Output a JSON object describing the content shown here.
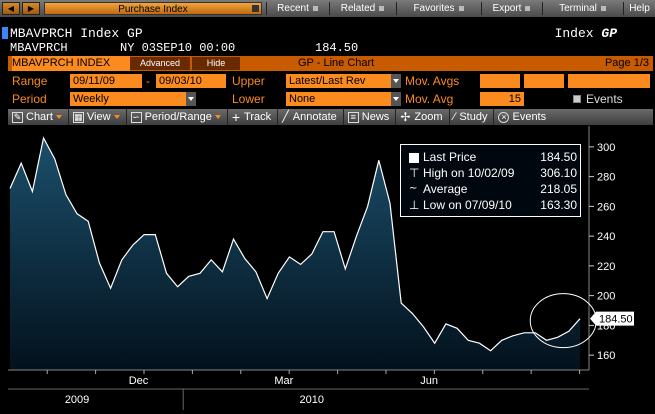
{
  "menubar": {
    "back_icon": "back-arrow-icon",
    "forward_icon": "forward-arrow-icon",
    "title": "Purchase Index",
    "items": [
      "Recent",
      "Related",
      "Favorites",
      "Export",
      "Terminal",
      "Help"
    ]
  },
  "header": {
    "ticker": "MBAVPRCH Index GP",
    "index_label": "Index",
    "index_fn": "GP",
    "code": "MBAVPRCH",
    "datetime": "NY 03SEP10 00:00",
    "price": "184.50"
  },
  "titlebar": {
    "ticker": "MBAVPRCH INDEX",
    "advanced": "Advanced",
    "hide": "Hide",
    "title": "GP - Line Chart",
    "page": "Page 1/3"
  },
  "controls": {
    "range_label": "Range",
    "range_start": "09/11/09",
    "range_sep": "-",
    "range_end": "09/03/10",
    "upper_label": "Upper",
    "upper_value": "Latest/Last Rev",
    "movavgs_label": "Mov. Avgs",
    "period_label": "Period",
    "period_value": "Weekly",
    "lower_label": "Lower",
    "lower_value": "None",
    "movavg_label": "Mov. Avg",
    "movavg_value": "15",
    "events_label": "Events"
  },
  "toolbar": {
    "chart": "Chart",
    "view": "View",
    "period_range": "Period/Range",
    "track": "Track",
    "annotate": "Annotate",
    "news": "News",
    "zoom": "Zoom",
    "study": "Study",
    "events": "Events"
  },
  "legend": {
    "last_price_label": "Last Price",
    "last_price_value": "184.50",
    "high_label": "High on 10/02/09",
    "high_value": "306.10",
    "average_label": "Average",
    "average_value": "218.05",
    "low_label": "Low on 07/09/10",
    "low_value": "163.30"
  },
  "chart_data": {
    "type": "area",
    "ylim": [
      150,
      310
    ],
    "y_ticks": [
      160,
      180,
      200,
      220,
      240,
      260,
      280,
      300
    ],
    "x_month_ticks": [
      "Dec",
      "Mar",
      "Jun"
    ],
    "x_year_ticks": [
      "2009",
      "2010"
    ],
    "last_price_tag": "184.50",
    "colors": {
      "line": "#ffffff",
      "fill_top": "#1b4f6b",
      "fill_bottom": "#03111c",
      "tag": "#ffffff"
    },
    "values": [
      272,
      289,
      270,
      306,
      292,
      268,
      255,
      250,
      222,
      205,
      224,
      234,
      241,
      241,
      215,
      206,
      213,
      215,
      224,
      216,
      238,
      225,
      216,
      198,
      215,
      226,
      221,
      228,
      243,
      243,
      218,
      240,
      260,
      291,
      262,
      195,
      188,
      179,
      168,
      181,
      178,
      170,
      168,
      163,
      170,
      173,
      175,
      175,
      170,
      172,
      176,
      184.5
    ]
  }
}
